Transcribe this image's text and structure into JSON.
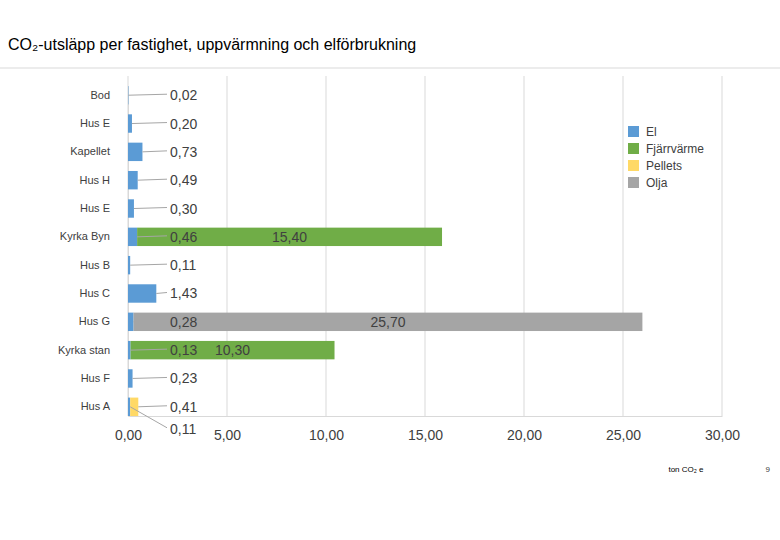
{
  "chart_data": {
    "type": "bar",
    "orientation": "horizontal",
    "stacked": true,
    "title": "CO₂-utsläpp per fastighet, uppvärmning och elförbrukning",
    "x_label": "ton CO₂ e",
    "annotations": [
      "9"
    ],
    "categories": [
      "Bod",
      "Hus E",
      "Kapellet",
      "Hus H",
      "Hus E",
      "Kyrka Byn",
      "Hus B",
      "Hus C",
      "Hus G",
      "Kyrka stan",
      "Hus F",
      "Hus A"
    ],
    "series": [
      {
        "name": "El",
        "color": "#5b9bd5",
        "values": [
          0.02,
          0.2,
          0.73,
          0.49,
          0.3,
          0.46,
          0.11,
          1.43,
          0.28,
          0.13,
          0.23,
          0.11
        ],
        "value_labels": [
          "0,02",
          "0,20",
          "0,73",
          "0,49",
          "0,30",
          "0,46",
          "0,11",
          "1,43",
          "0,28",
          "0,13",
          "0,23",
          "0,11"
        ]
      },
      {
        "name": "Fjärrvärme",
        "color": "#70ad47",
        "values": [
          null,
          null,
          null,
          null,
          null,
          15.4,
          null,
          null,
          null,
          10.3,
          null,
          null
        ],
        "value_labels": [
          null,
          null,
          null,
          null,
          null,
          "15,40",
          null,
          null,
          null,
          "10,30",
          null,
          null
        ]
      },
      {
        "name": "Pellets",
        "color": "#ffd966",
        "values": [
          null,
          null,
          null,
          null,
          null,
          null,
          null,
          null,
          null,
          null,
          null,
          0.41
        ],
        "value_labels": [
          null,
          null,
          null,
          null,
          null,
          null,
          null,
          null,
          null,
          null,
          null,
          "0,41"
        ]
      },
      {
        "name": "Olja",
        "color": "#a5a5a5",
        "values": [
          null,
          null,
          null,
          null,
          null,
          null,
          null,
          null,
          25.7,
          null,
          null,
          null
        ],
        "value_labels": [
          null,
          null,
          null,
          null,
          null,
          null,
          null,
          null,
          "25,70",
          null,
          null,
          null
        ]
      }
    ],
    "xlim": [
      0,
      30
    ],
    "xticks": [
      {
        "value": 0,
        "label": "0,00"
      },
      {
        "value": 5,
        "label": "5,00"
      },
      {
        "value": 10,
        "label": "10,00"
      },
      {
        "value": 15,
        "label": "15,00"
      },
      {
        "value": 20,
        "label": "20,00"
      },
      {
        "value": 25,
        "label": "25,00"
      },
      {
        "value": 30,
        "label": "30,00"
      }
    ],
    "grid": true,
    "legend": "upper right",
    "data_labels": true
  }
}
